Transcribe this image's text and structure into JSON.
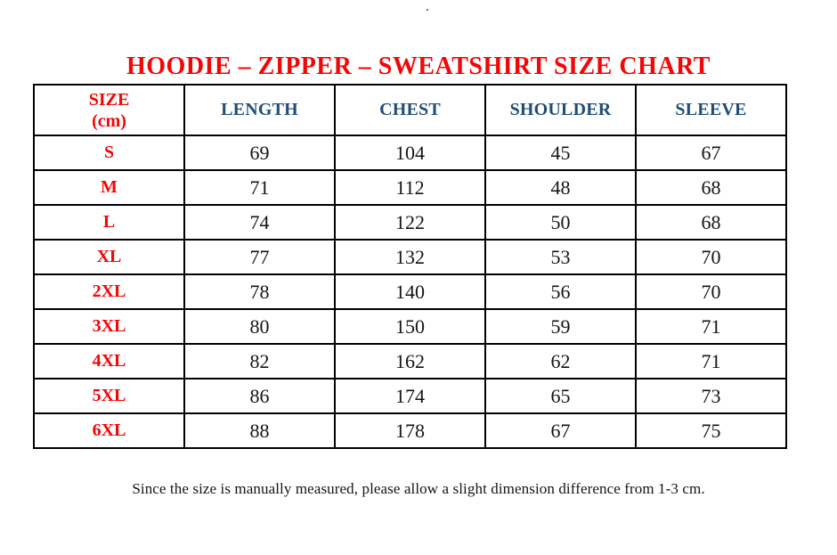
{
  "page": {
    "top_dot": ".",
    "title": "HOODIE – ZIPPER – SWEATSHIRT SIZE CHART",
    "footer_note": "Since the size is manually measured, please allow a slight dimension difference from 1-3 cm."
  },
  "table": {
    "header": {
      "size_label": "SIZE",
      "size_unit": "(cm)",
      "columns": [
        "LENGTH",
        "CHEST",
        "SHOULDER",
        "SLEEVE"
      ]
    },
    "rows": [
      {
        "size": "S",
        "values": [
          69,
          104,
          45,
          67
        ]
      },
      {
        "size": "M",
        "values": [
          71,
          112,
          48,
          68
        ]
      },
      {
        "size": "L",
        "values": [
          74,
          122,
          50,
          68
        ]
      },
      {
        "size": "XL",
        "values": [
          77,
          132,
          53,
          70
        ]
      },
      {
        "size": "2XL",
        "values": [
          78,
          140,
          56,
          70
        ]
      },
      {
        "size": "3XL",
        "values": [
          80,
          150,
          59,
          71
        ]
      },
      {
        "size": "4XL",
        "values": [
          82,
          162,
          62,
          71
        ]
      },
      {
        "size": "5XL",
        "values": [
          86,
          174,
          65,
          73
        ]
      },
      {
        "size": "6XL",
        "values": [
          88,
          178,
          67,
          75
        ]
      }
    ]
  },
  "colors": {
    "accent-red": "#f40606",
    "header-blue": "#1f4e79",
    "text-black": "#141414",
    "table-border": "#000000"
  }
}
